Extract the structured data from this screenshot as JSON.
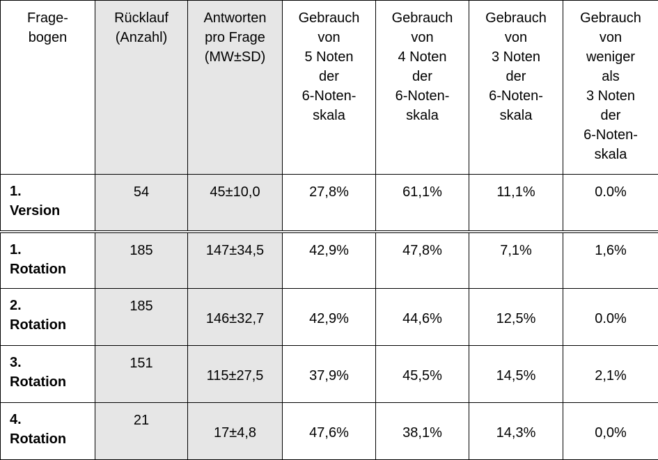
{
  "header": [
    [
      "Frage-",
      "bogen"
    ],
    [
      "Rücklauf",
      "(Anzahl)"
    ],
    [
      "Antworten",
      "pro Frage",
      "(MW±SD)"
    ],
    [
      "Gebrauch",
      "von",
      "5 Noten",
      "der",
      "6-Noten-",
      "skala"
    ],
    [
      "Gebrauch",
      "von",
      "4 Noten",
      "der",
      "6-Noten-",
      "skala"
    ],
    [
      "Gebrauch",
      "von",
      "3 Noten",
      "der",
      "6-Noten-",
      "skala"
    ],
    [
      "Gebrauch",
      "von",
      "weniger",
      "als",
      "3 Noten",
      "der",
      "6-Noten-",
      "skala"
    ]
  ],
  "rows": [
    {
      "label": [
        "1.",
        "Version"
      ],
      "ruecklauf": "54",
      "antworten": "45±10,0",
      "n5": "27,8%",
      "n4": "61,1%",
      "n3": "11,1%",
      "nless": "0.0%"
    },
    {
      "label": [
        "1.",
        "Rotation"
      ],
      "ruecklauf": "185",
      "antworten": "147±34,5",
      "n5": "42,9%",
      "n4": "47,8%",
      "n3": "7,1%",
      "nless": "1,6%"
    },
    {
      "label": [
        "2.",
        "Rotation"
      ],
      "ruecklauf": "185",
      "antworten": "146±32,7",
      "n5": "42,9%",
      "n4": "44,6%",
      "n3": "12,5%",
      "nless": "0.0%"
    },
    {
      "label": [
        "3.",
        "Rotation"
      ],
      "ruecklauf": "151",
      "antworten": "115±27,5",
      "n5": "37,9%",
      "n4": "45,5%",
      "n3": "14,5%",
      "nless": "2,1%"
    },
    {
      "label": [
        "4.",
        "Rotation"
      ],
      "ruecklauf": "21",
      "antworten": "17±4,8",
      "n5": "47,6%",
      "n4": "38,1%",
      "n3": "14,3%",
      "nless": "0,0%"
    }
  ]
}
